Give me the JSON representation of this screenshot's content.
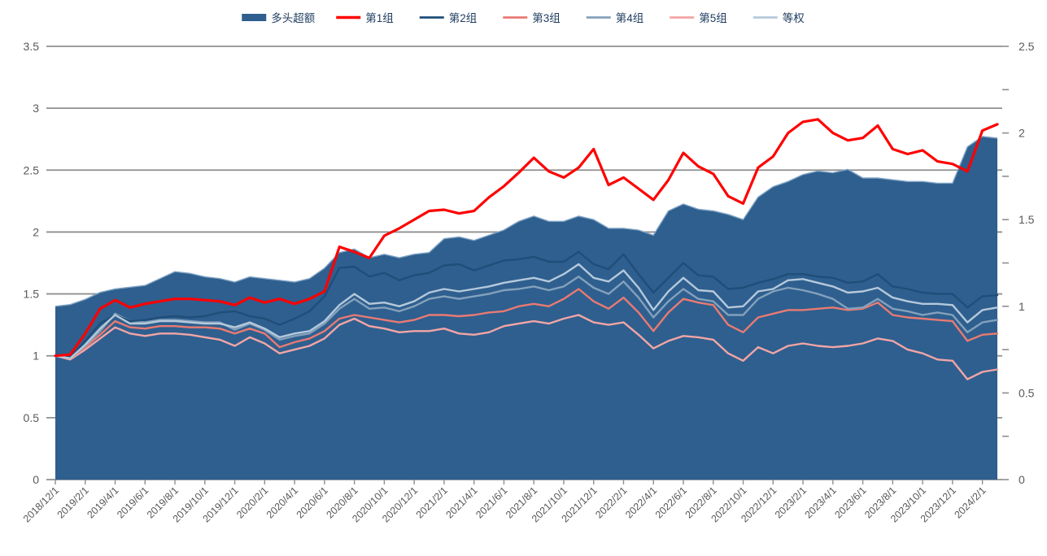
{
  "legend": {
    "items": [
      {
        "label": "多头超额",
        "color": "#2E5F8F",
        "swatch": "rect"
      },
      {
        "label": "第1组",
        "color": "#FE0000",
        "swatch": "line-thick"
      },
      {
        "label": "第2组",
        "color": "#1F4E79",
        "swatch": "line"
      },
      {
        "label": "第3组",
        "color": "#E97A72",
        "swatch": "line"
      },
      {
        "label": "第4组",
        "color": "#84A1BC",
        "swatch": "line"
      },
      {
        "label": "第5组",
        "color": "#F2A5A5",
        "swatch": "line"
      },
      {
        "label": "等权",
        "color": "#B5C9DB",
        "swatch": "line"
      }
    ],
    "text_color": "#1F3C5F"
  },
  "chart_data": {
    "type": "area",
    "note": "combo chart: filled area on right axis + 6 lines on left axis, monthly data",
    "grid": true,
    "gridline_color": "#8F8F8F",
    "axis_label_color": "#595959",
    "left_axis": {
      "min": 0,
      "max": 3.5,
      "step": 0.5,
      "tick_labels": [
        "0",
        "0.5",
        "1",
        "1.5",
        "2",
        "2.5",
        "3",
        "3.5"
      ]
    },
    "right_axis": {
      "min": 0,
      "max": 2.5,
      "step": 0.5,
      "minor_step": 0.25,
      "tick_labels": [
        "0",
        "0.5",
        "1",
        "1.5",
        "2",
        "2.5"
      ]
    },
    "x": [
      "2018/12/1",
      "2019/1/1",
      "2019/2/1",
      "2019/3/1",
      "2019/4/1",
      "2019/5/1",
      "2019/6/1",
      "2019/7/1",
      "2019/8/1",
      "2019/9/1",
      "2019/10/1",
      "2019/11/1",
      "2019/12/1",
      "2020/1/1",
      "2020/2/1",
      "2020/3/1",
      "2020/4/1",
      "2020/5/1",
      "2020/6/1",
      "2020/7/1",
      "2020/8/1",
      "2020/9/1",
      "2020/10/1",
      "2020/11/1",
      "2020/12/1",
      "2021/1/1",
      "2021/2/1",
      "2021/3/1",
      "2021/4/1",
      "2021/5/1",
      "2021/6/1",
      "2021/7/1",
      "2021/8/1",
      "2021/9/1",
      "2021/10/1",
      "2021/11/1",
      "2021/12/1",
      "2022/1/1",
      "2022/2/1",
      "2022/3/1",
      "2022/4/1",
      "2022/5/1",
      "2022/6/1",
      "2022/7/1",
      "2022/8/1",
      "2022/9/1",
      "2022/10/1",
      "2022/11/1",
      "2022/12/1",
      "2023/1/1",
      "2023/2/1",
      "2023/3/1",
      "2023/4/1",
      "2023/5/1",
      "2023/6/1",
      "2023/7/1",
      "2023/8/1",
      "2023/9/1",
      "2023/10/1",
      "2023/11/1",
      "2023/12/1",
      "2024/1/1",
      "2024/2/1",
      "2024/3/1"
    ],
    "x_labels_every": 2,
    "series": [
      {
        "name": "多头超额",
        "kind": "area",
        "axis": "right",
        "color": "#2E5F8F",
        "edge_color": "#7FA3C4",
        "values": [
          1.0,
          1.01,
          1.04,
          1.08,
          1.1,
          1.11,
          1.12,
          1.16,
          1.2,
          1.19,
          1.17,
          1.16,
          1.14,
          1.17,
          1.16,
          1.15,
          1.14,
          1.16,
          1.22,
          1.31,
          1.33,
          1.28,
          1.3,
          1.28,
          1.3,
          1.31,
          1.39,
          1.4,
          1.38,
          1.41,
          1.44,
          1.49,
          1.52,
          1.49,
          1.49,
          1.52,
          1.5,
          1.45,
          1.45,
          1.44,
          1.41,
          1.55,
          1.59,
          1.56,
          1.55,
          1.53,
          1.5,
          1.63,
          1.69,
          1.72,
          1.76,
          1.78,
          1.77,
          1.79,
          1.74,
          1.74,
          1.73,
          1.72,
          1.72,
          1.71,
          1.71,
          1.92,
          1.98,
          1.97
        ]
      },
      {
        "name": "第5组",
        "kind": "line",
        "axis": "left",
        "color": "#F2A5A5",
        "width": 2.4,
        "values": [
          1.0,
          0.97,
          1.05,
          1.14,
          1.23,
          1.18,
          1.16,
          1.18,
          1.18,
          1.17,
          1.15,
          1.13,
          1.08,
          1.15,
          1.1,
          1.02,
          1.05,
          1.08,
          1.14,
          1.25,
          1.3,
          1.24,
          1.22,
          1.19,
          1.2,
          1.2,
          1.22,
          1.18,
          1.17,
          1.19,
          1.24,
          1.26,
          1.28,
          1.26,
          1.3,
          1.33,
          1.27,
          1.25,
          1.27,
          1.17,
          1.06,
          1.12,
          1.16,
          1.15,
          1.13,
          1.02,
          0.96,
          1.07,
          1.02,
          1.08,
          1.1,
          1.08,
          1.07,
          1.08,
          1.1,
          1.14,
          1.12,
          1.05,
          1.02,
          0.97,
          0.96,
          0.81,
          0.87,
          0.89
        ]
      },
      {
        "name": "第3组",
        "kind": "line",
        "axis": "left",
        "color": "#E97A72",
        "width": 2.4,
        "values": [
          1.0,
          0.98,
          1.07,
          1.17,
          1.28,
          1.23,
          1.22,
          1.24,
          1.24,
          1.23,
          1.23,
          1.22,
          1.18,
          1.22,
          1.18,
          1.07,
          1.11,
          1.14,
          1.2,
          1.3,
          1.33,
          1.31,
          1.29,
          1.27,
          1.29,
          1.33,
          1.33,
          1.32,
          1.33,
          1.35,
          1.36,
          1.4,
          1.42,
          1.4,
          1.46,
          1.54,
          1.44,
          1.38,
          1.47,
          1.35,
          1.2,
          1.35,
          1.46,
          1.43,
          1.41,
          1.25,
          1.19,
          1.31,
          1.34,
          1.37,
          1.37,
          1.38,
          1.39,
          1.37,
          1.38,
          1.43,
          1.33,
          1.31,
          1.3,
          1.29,
          1.28,
          1.12,
          1.17,
          1.18
        ]
      },
      {
        "name": "第4组",
        "kind": "line",
        "axis": "left",
        "color": "#84A1BC",
        "width": 2.4,
        "values": [
          1.0,
          0.98,
          1.08,
          1.2,
          1.34,
          1.28,
          1.27,
          1.29,
          1.29,
          1.28,
          1.27,
          1.27,
          1.21,
          1.26,
          1.21,
          1.13,
          1.16,
          1.18,
          1.26,
          1.38,
          1.46,
          1.38,
          1.39,
          1.36,
          1.4,
          1.46,
          1.48,
          1.46,
          1.48,
          1.5,
          1.53,
          1.54,
          1.56,
          1.53,
          1.56,
          1.64,
          1.55,
          1.5,
          1.6,
          1.47,
          1.31,
          1.44,
          1.54,
          1.46,
          1.44,
          1.33,
          1.33,
          1.46,
          1.52,
          1.55,
          1.53,
          1.5,
          1.46,
          1.38,
          1.39,
          1.46,
          1.38,
          1.36,
          1.33,
          1.35,
          1.33,
          1.19,
          1.27,
          1.29
        ]
      },
      {
        "name": "第2组",
        "kind": "line",
        "axis": "left",
        "color": "#1F4E79",
        "width": 2.4,
        "values": [
          1.0,
          0.99,
          1.12,
          1.26,
          1.33,
          1.28,
          1.29,
          1.31,
          1.32,
          1.31,
          1.32,
          1.35,
          1.36,
          1.32,
          1.3,
          1.25,
          1.3,
          1.36,
          1.48,
          1.71,
          1.72,
          1.64,
          1.67,
          1.61,
          1.65,
          1.67,
          1.73,
          1.74,
          1.69,
          1.73,
          1.77,
          1.78,
          1.8,
          1.76,
          1.76,
          1.84,
          1.74,
          1.7,
          1.82,
          1.66,
          1.51,
          1.63,
          1.75,
          1.65,
          1.64,
          1.54,
          1.55,
          1.59,
          1.62,
          1.66,
          1.66,
          1.64,
          1.63,
          1.59,
          1.6,
          1.66,
          1.56,
          1.54,
          1.51,
          1.5,
          1.5,
          1.39,
          1.48,
          1.49
        ]
      },
      {
        "name": "等权",
        "kind": "line",
        "axis": "left",
        "color": "#B5C9DB",
        "width": 2.4,
        "values": [
          1.0,
          0.98,
          1.09,
          1.22,
          1.33,
          1.26,
          1.26,
          1.28,
          1.28,
          1.27,
          1.26,
          1.26,
          1.23,
          1.27,
          1.22,
          1.15,
          1.18,
          1.2,
          1.28,
          1.41,
          1.5,
          1.42,
          1.43,
          1.4,
          1.44,
          1.51,
          1.54,
          1.52,
          1.54,
          1.56,
          1.59,
          1.61,
          1.63,
          1.6,
          1.66,
          1.74,
          1.63,
          1.6,
          1.69,
          1.55,
          1.37,
          1.52,
          1.63,
          1.53,
          1.52,
          1.39,
          1.4,
          1.52,
          1.54,
          1.61,
          1.62,
          1.59,
          1.56,
          1.51,
          1.52,
          1.55,
          1.47,
          1.44,
          1.42,
          1.42,
          1.41,
          1.27,
          1.37,
          1.39
        ]
      },
      {
        "name": "第1组",
        "kind": "line",
        "axis": "left",
        "color": "#FE0000",
        "width": 3.2,
        "values": [
          1.0,
          1.01,
          1.18,
          1.38,
          1.45,
          1.39,
          1.42,
          1.44,
          1.46,
          1.46,
          1.45,
          1.44,
          1.41,
          1.47,
          1.43,
          1.46,
          1.42,
          1.46,
          1.52,
          1.88,
          1.84,
          1.79,
          1.97,
          2.03,
          2.1,
          2.17,
          2.18,
          2.15,
          2.17,
          2.28,
          2.37,
          2.48,
          2.6,
          2.49,
          2.44,
          2.52,
          2.67,
          2.38,
          2.44,
          2.35,
          2.26,
          2.42,
          2.64,
          2.53,
          2.47,
          2.29,
          2.23,
          2.52,
          2.61,
          2.8,
          2.89,
          2.91,
          2.8,
          2.74,
          2.76,
          2.86,
          2.67,
          2.63,
          2.66,
          2.57,
          2.55,
          2.49,
          2.82,
          2.87
        ]
      }
    ]
  }
}
